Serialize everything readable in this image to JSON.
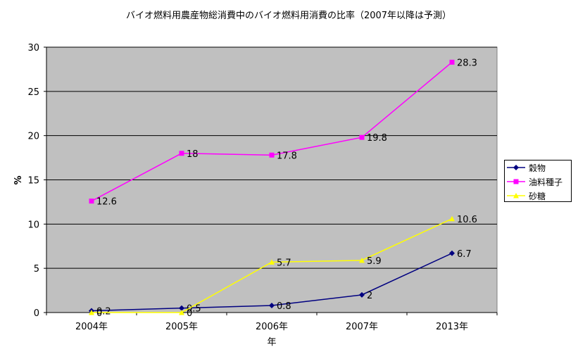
{
  "chart_data": {
    "type": "line",
    "title": "バイオ燃料用農産物総消費中のバイオ燃料用消費の比率（2007年以降は予測）",
    "xlabel": "年",
    "ylabel": "%",
    "categories": [
      "2004年",
      "2005年",
      "2006年",
      "2007年",
      "2013年"
    ],
    "ylim": [
      0,
      30
    ],
    "yticks": [
      "0",
      "5",
      "10",
      "15",
      "20",
      "25",
      "30"
    ],
    "grid": "horizontal",
    "plot_background": "#c0c0c0",
    "legend_position": "right",
    "series": [
      {
        "name": "穀物",
        "color": "#000080",
        "marker": "diamond",
        "values": [
          0.2,
          0.5,
          0.8,
          2,
          6.7
        ],
        "labels": [
          "0.2",
          "0.5",
          "0.8",
          "2",
          "6.7"
        ]
      },
      {
        "name": "油料種子",
        "color": "#ff00ff",
        "marker": "square",
        "values": [
          12.6,
          18,
          17.8,
          19.8,
          28.3
        ],
        "labels": [
          "12.6",
          "18",
          "17.8",
          "19.8",
          "28.3"
        ]
      },
      {
        "name": "砂糖",
        "color": "#ffff00",
        "marker": "triangle",
        "values": [
          0,
          0,
          5.7,
          5.9,
          10.6
        ],
        "labels": [
          "0",
          "0",
          "5.7",
          "5.9",
          "10.6"
        ]
      }
    ]
  }
}
